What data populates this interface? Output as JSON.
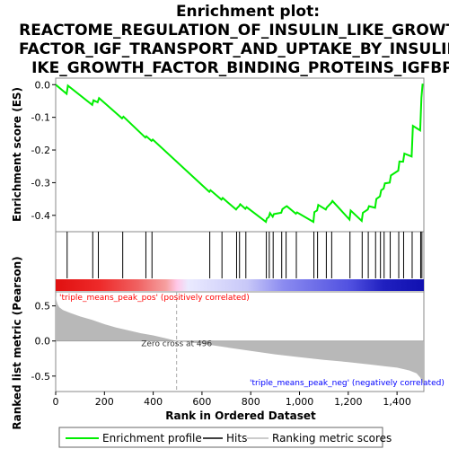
{
  "title_lines": [
    "Enrichment plot:",
    "REACTOME_REGULATION_OF_INSULIN_LIKE_GROWTH_",
    "FACTOR_IGF_TRANSPORT_AND_UPTAKE_BY_INSULIN_L",
    "IKE_GROWTH_FACTOR_BINDING_PROTEINS_IGFBPS"
  ],
  "legend": {
    "enrichment": "Enrichment profile",
    "hits": "Hits",
    "ranking": "Ranking metric scores"
  },
  "colors": {
    "enrichment_line": "#00ee00",
    "hits": "#000000",
    "metric_fill": "#b8b8b8",
    "pos_label": "#ff0000",
    "neg_label": "#0000ff"
  },
  "chart_data": [
    {
      "type": "line",
      "name": "enrichment-score",
      "ylabel": "Enrichment score (ES)",
      "xlim": [
        0,
        1510
      ],
      "ylim": [
        -0.45,
        0.02
      ],
      "yticks": [
        0.0,
        -0.1,
        -0.2,
        -0.3,
        -0.4
      ],
      "ytick_labels": [
        "0.0",
        "-0.1",
        "-0.2",
        "-0.3",
        "-0.4"
      ],
      "x": [
        0,
        45,
        50,
        150,
        155,
        172,
        178,
        272,
        278,
        368,
        372,
        393,
        398,
        630,
        635,
        680,
        685,
        740,
        745,
        752,
        757,
        778,
        783,
        862,
        866,
        874,
        879,
        890,
        895,
        925,
        930,
        943,
        948,
        985,
        990,
        1057,
        1061,
        1072,
        1077,
        1108,
        1112,
        1130,
        1135,
        1205,
        1210,
        1255,
        1260,
        1280,
        1285,
        1310,
        1315,
        1330,
        1335,
        1345,
        1350,
        1370,
        1375,
        1405,
        1410,
        1425,
        1430,
        1460,
        1465,
        1495,
        1500,
        1505
      ],
      "y": [
        0.0,
        -0.028,
        -0.003,
        -0.062,
        -0.048,
        -0.054,
        -0.041,
        -0.103,
        -0.098,
        -0.162,
        -0.158,
        -0.172,
        -0.168,
        -0.328,
        -0.323,
        -0.352,
        -0.347,
        -0.382,
        -0.377,
        -0.372,
        -0.366,
        -0.38,
        -0.375,
        -0.42,
        -0.41,
        -0.405,
        -0.393,
        -0.404,
        -0.396,
        -0.392,
        -0.381,
        -0.374,
        -0.372,
        -0.395,
        -0.391,
        -0.42,
        -0.39,
        -0.385,
        -0.368,
        -0.382,
        -0.376,
        -0.362,
        -0.356,
        -0.413,
        -0.385,
        -0.417,
        -0.392,
        -0.382,
        -0.372,
        -0.377,
        -0.35,
        -0.342,
        -0.323,
        -0.318,
        -0.302,
        -0.3,
        -0.278,
        -0.263,
        -0.235,
        -0.236,
        -0.211,
        -0.22,
        -0.126,
        -0.14,
        -0.04,
        0.003
      ]
    },
    {
      "type": "hits",
      "name": "hits",
      "positions": [
        47,
        152,
        175,
        275,
        370,
        395,
        632,
        682,
        742,
        754,
        780,
        864,
        876,
        892,
        927,
        945,
        987,
        1059,
        1074,
        1110,
        1132,
        1207,
        1257,
        1282,
        1312,
        1332,
        1347,
        1372,
        1407,
        1427,
        1462,
        1497,
        1502
      ]
    },
    {
      "type": "area",
      "name": "ranked-list-metric",
      "ylabel": "Ranked list metric (Pearson)",
      "xlabel": "Rank in Ordered Dataset",
      "xlim": [
        0,
        1510
      ],
      "ylim": [
        -0.72,
        0.7
      ],
      "xticks": [
        0,
        200,
        400,
        600,
        800,
        1000,
        1200,
        1400
      ],
      "xtick_labels": [
        "0",
        "200",
        "400",
        "600",
        "800",
        "1,000",
        "1,200",
        "1,400"
      ],
      "yticks": [
        0.5,
        0.0,
        -0.5
      ],
      "ytick_labels": [
        "0.5",
        "0.0",
        "-0.5"
      ],
      "x": [
        0,
        3,
        8,
        15,
        30,
        60,
        100,
        150,
        200,
        250,
        300,
        350,
        400,
        450,
        496,
        550,
        600,
        700,
        800,
        900,
        1000,
        1100,
        1200,
        1300,
        1350,
        1400,
        1450,
        1480,
        1495,
        1505,
        1510
      ],
      "y": [
        0.65,
        0.58,
        0.52,
        0.48,
        0.44,
        0.4,
        0.35,
        0.3,
        0.24,
        0.19,
        0.15,
        0.11,
        0.08,
        0.04,
        0.0,
        -0.02,
        -0.04,
        -0.09,
        -0.14,
        -0.19,
        -0.23,
        -0.27,
        -0.3,
        -0.34,
        -0.36,
        -0.38,
        -0.42,
        -0.46,
        -0.52,
        -0.6,
        -0.6
      ],
      "zero_cross_label": "Zero cross at 496",
      "zero_cross": 496,
      "pos_label": "'triple_means_peak_pos' (positively correlated)",
      "neg_label": "'triple_means_peak_neg' (negatively correlated)"
    }
  ]
}
